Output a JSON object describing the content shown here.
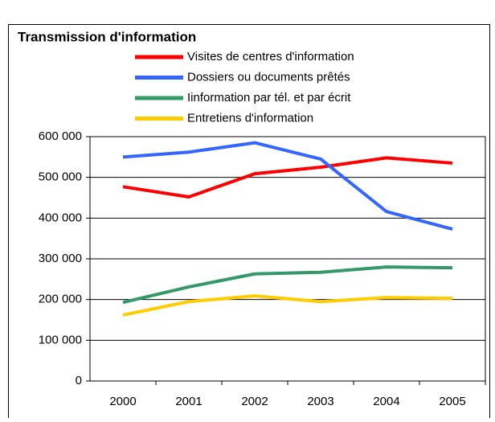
{
  "chart_data": {
    "type": "line",
    "title": "Transmission d'information",
    "categories": [
      "2000",
      "2001",
      "2002",
      "2003",
      "2004",
      "2005"
    ],
    "series": [
      {
        "name": "Visites de centres d'information",
        "color": "#ff0000",
        "values": [
          477000,
          452000,
          509000,
          525000,
          548000,
          535000
        ]
      },
      {
        "name": "Dossiers ou documents prêtés",
        "color": "#3366ff",
        "values": [
          550000,
          562000,
          585000,
          545000,
          416000,
          373000
        ]
      },
      {
        "name": "Iinformation par tél. et par écrit",
        "color": "#339966",
        "values": [
          193000,
          231000,
          263000,
          267000,
          280000,
          278000
        ]
      },
      {
        "name": "Entretiens d'information",
        "color": "#ffcc00",
        "values": [
          162000,
          195000,
          209000,
          195000,
          205000,
          203000
        ]
      }
    ],
    "ylim": [
      0,
      600000
    ],
    "yticks": [
      {
        "value": 0,
        "label": "0"
      },
      {
        "value": 100000,
        "label": "100 000"
      },
      {
        "value": 200000,
        "label": "200 000"
      },
      {
        "value": 300000,
        "label": "300 000"
      },
      {
        "value": 400000,
        "label": "400 000"
      },
      {
        "value": 500000,
        "label": "500 000"
      },
      {
        "value": 600000,
        "label": "600 000"
      }
    ],
    "grid": true
  }
}
